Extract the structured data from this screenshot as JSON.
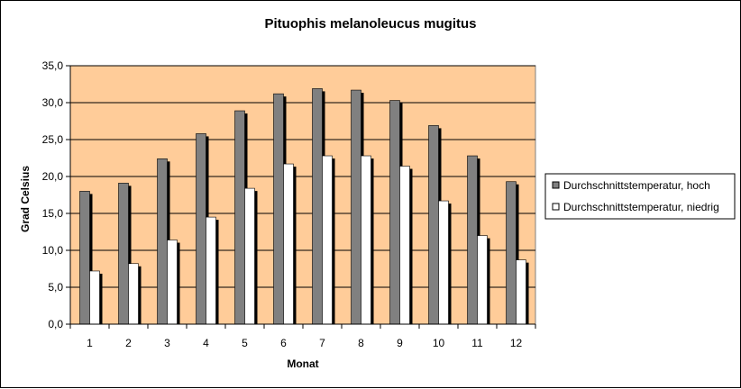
{
  "chart_data": {
    "type": "bar",
    "title": "Pituophis melanoleucus mugitus",
    "xlabel": "Monat",
    "ylabel": "Grad Celsius",
    "categories": [
      "1",
      "2",
      "3",
      "4",
      "5",
      "6",
      "7",
      "8",
      "9",
      "10",
      "11",
      "12"
    ],
    "series": [
      {
        "name": "Durchschnittstemperatur, hoch",
        "values": [
          18.0,
          19.1,
          22.4,
          25.8,
          28.9,
          31.2,
          31.9,
          31.7,
          30.3,
          26.9,
          22.8,
          19.3
        ]
      },
      {
        "name": "Durchschnittstemperatur, niedrig",
        "values": [
          7.2,
          8.2,
          11.4,
          14.5,
          18.4,
          21.7,
          22.8,
          22.8,
          21.4,
          16.7,
          12.0,
          8.7
        ]
      }
    ],
    "ylim": [
      0,
      35
    ],
    "y_ticks": [
      "0,0",
      "5,0",
      "10,0",
      "15,0",
      "20,0",
      "25,0",
      "30,0",
      "35,0"
    ],
    "grid": true,
    "legend_position": "right",
    "colors": {
      "plot_background": "#FFCC99",
      "series_high": "#808080",
      "series_low": "#FFFFFF",
      "gridline": "#000000",
      "bar_shadow": "#000000"
    }
  }
}
